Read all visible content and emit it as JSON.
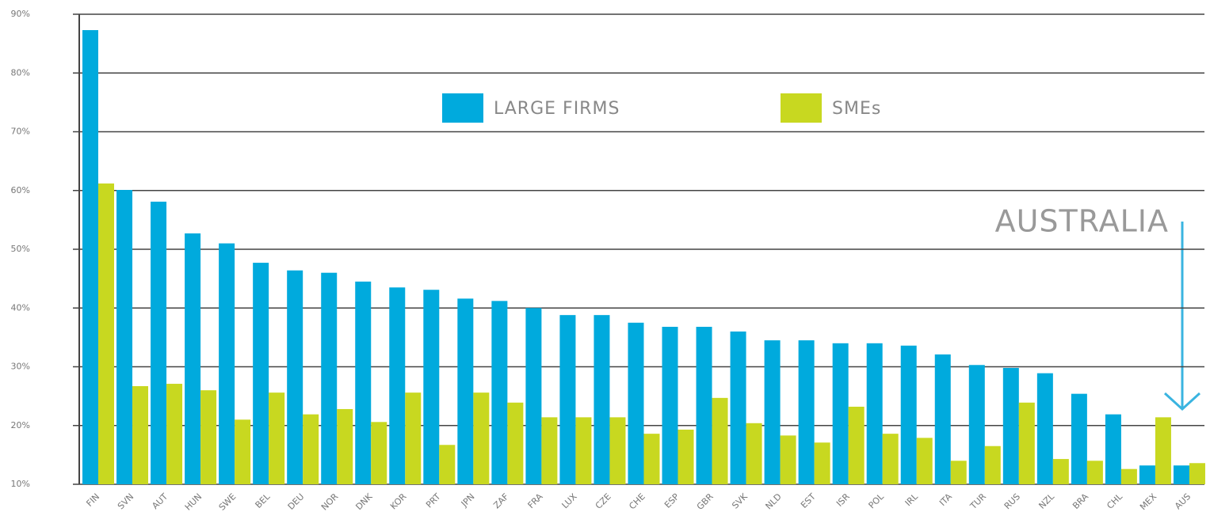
{
  "chart_data": {
    "type": "bar",
    "categories": [
      "FIN",
      "SVN",
      "AUT",
      "HUN",
      "SWE",
      "BEL",
      "DEU",
      "NOR",
      "DNK",
      "KOR",
      "PRT",
      "JPN",
      "ZAF",
      "FRA",
      "LUX",
      "CZE",
      "CHE",
      "ESP",
      "GBR",
      "SVK",
      "NLD",
      "EST",
      "ISR",
      "POL",
      "IRL",
      "ITA",
      "TUR",
      "RUS",
      "NZL",
      "BRA",
      "CHL",
      "MEX",
      "AUS"
    ],
    "series": [
      {
        "name": "LARGE FIRMS",
        "color": "#00aadd",
        "values": [
          87.3,
          60.1,
          58.1,
          52.7,
          51,
          47.7,
          46.4,
          46,
          44.5,
          43.5,
          43.1,
          41.6,
          41.2,
          40,
          38.8,
          38.8,
          37.5,
          36.8,
          36.8,
          36,
          34.5,
          34.5,
          34,
          34,
          33.6,
          32.1,
          30.3,
          29.8,
          28.9,
          25.4,
          21.9,
          13.2,
          13.2
        ]
      },
      {
        "name": "SMEs",
        "color": "#c8d820",
        "values": [
          61.2,
          26.7,
          27.1,
          26,
          21,
          25.6,
          21.9,
          22.8,
          20.6,
          25.6,
          16.7,
          25.6,
          23.9,
          21.4,
          21.4,
          21.4,
          18.6,
          19.3,
          24.7,
          20.4,
          18.3,
          17.1,
          23.2,
          18.6,
          17.9,
          14,
          16.5,
          23.9,
          14.3,
          14,
          12.6,
          21.4,
          13.6
        ]
      }
    ],
    "ylim": [
      10,
      90
    ],
    "yticks": [
      {
        "value": 10,
        "label": "10%"
      },
      {
        "value": 20,
        "label": "20%"
      },
      {
        "value": 30,
        "label": "30%"
      },
      {
        "value": 40,
        "label": "40%"
      },
      {
        "value": 50,
        "label": "50%"
      },
      {
        "value": 60,
        "label": "60%"
      },
      {
        "value": 70,
        "label": "70%"
      },
      {
        "value": 80,
        "label": "80%"
      },
      {
        "value": 90,
        "label": "90%"
      }
    ],
    "grid": true,
    "annotation": "AUSTRALIA",
    "legend": "top"
  }
}
